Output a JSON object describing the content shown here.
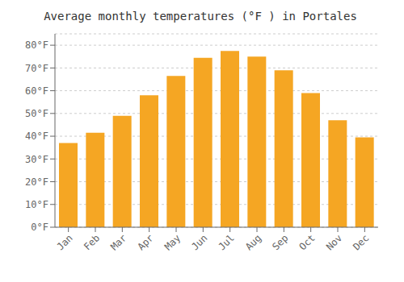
{
  "chart_data": {
    "type": "bar",
    "title": "Average monthly temperatures (°F ) in Portales",
    "categories": [
      "Jan",
      "Feb",
      "Mar",
      "Apr",
      "May",
      "Jun",
      "Jul",
      "Aug",
      "Sep",
      "Oct",
      "Nov",
      "Dec"
    ],
    "values": [
      37,
      41.5,
      49,
      58,
      66.5,
      74.5,
      77.5,
      75,
      69,
      59,
      47,
      39.5
    ],
    "color": "#F5A623",
    "ylim": [
      0,
      85
    ],
    "yticks": [
      {
        "value": 0,
        "label": "0°F"
      },
      {
        "value": 10,
        "label": "10°F"
      },
      {
        "value": 20,
        "label": "20°F"
      },
      {
        "value": 30,
        "label": "30°F"
      },
      {
        "value": 40,
        "label": "40°F"
      },
      {
        "value": 50,
        "label": "50°F"
      },
      {
        "value": 60,
        "label": "60°F"
      },
      {
        "value": 70,
        "label": "70°F"
      },
      {
        "value": 80,
        "label": "80°F"
      }
    ],
    "grid": true
  }
}
